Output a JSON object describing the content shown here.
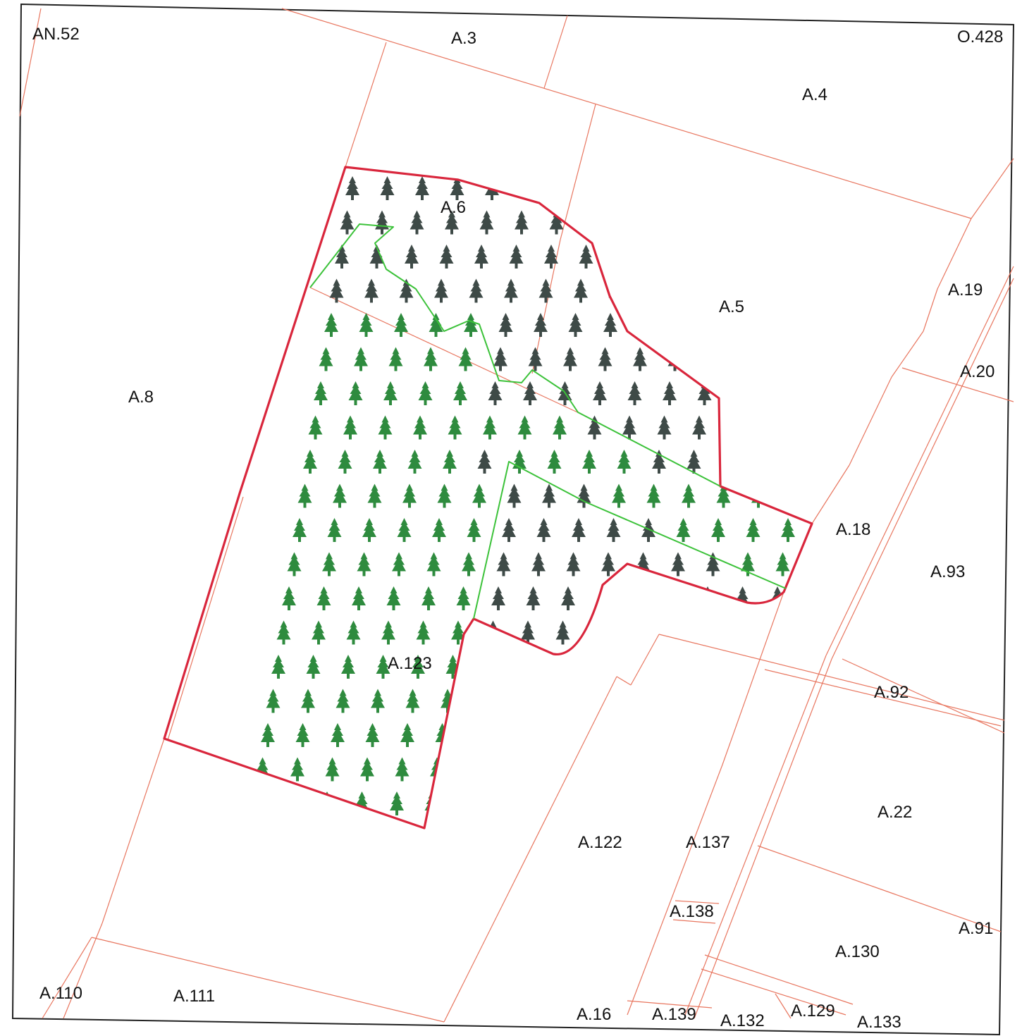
{
  "map": {
    "colors": {
      "parcel_boundary": "#e8765f",
      "site_boundary": "#d9263c",
      "sub_boundary": "#3cc23a",
      "tree_dark": "#3e4a47",
      "tree_green": "#2e8b3e"
    },
    "icons": {
      "tree": "conifer-tree-icon"
    },
    "labels": {
      "an52": "AN.52",
      "a3": "A.3",
      "o428": "O.428",
      "a4": "A.4",
      "a6": "A.6",
      "a5": "A.5",
      "a19": "A.19",
      "a20": "A.20",
      "a8": "A.8",
      "a18": "A.18",
      "a93": "A.93",
      "a123": "A.123",
      "a92": "A.92",
      "a22": "A.22",
      "a122": "A.122",
      "a137": "A.137",
      "a138": "A.138",
      "a91": "A.91",
      "a130": "A.130",
      "a110": "A.110",
      "a111": "A.111",
      "a16": "A.16",
      "a139": "A.139",
      "a132": "A.132",
      "a129": "A.129",
      "a133": "A.133"
    }
  }
}
